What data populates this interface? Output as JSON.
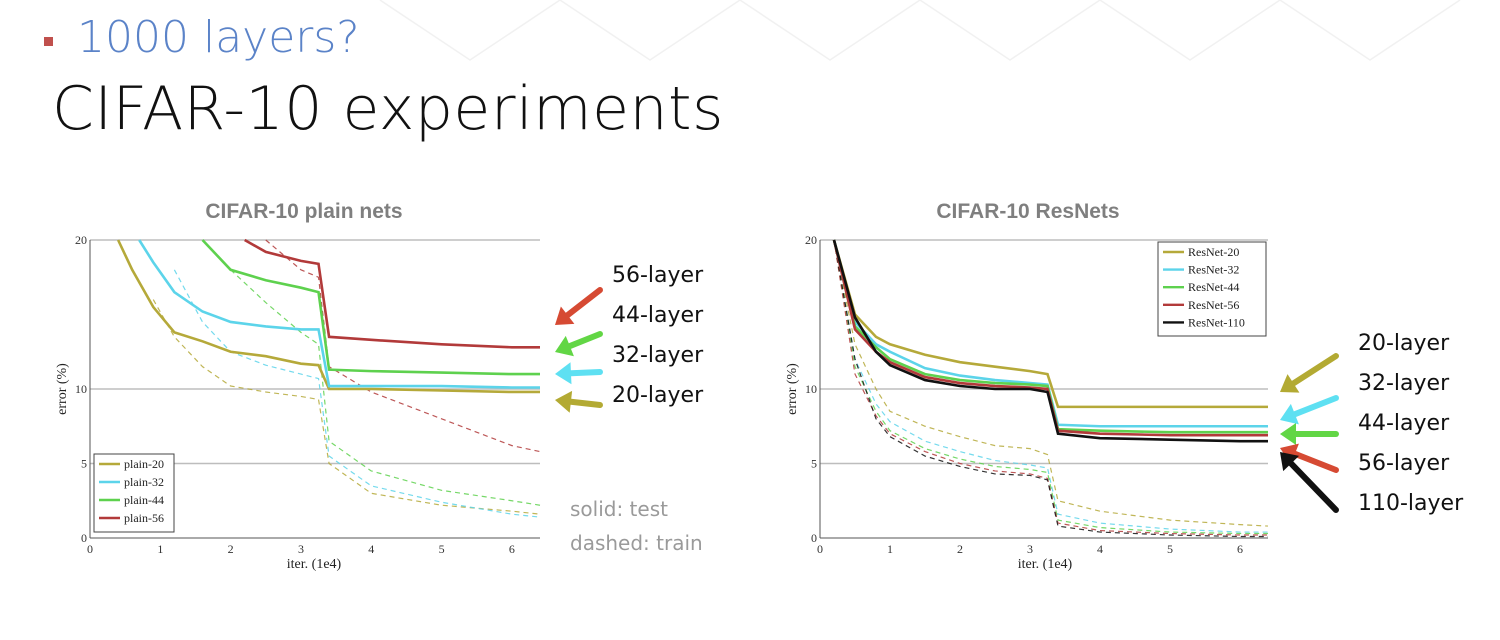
{
  "slide": {
    "bullet": "1000 layers?",
    "title": "CIFAR-10 experiments",
    "legend_note": [
      "solid: test",
      "dashed: train"
    ]
  },
  "chart_data": [
    {
      "type": "line",
      "title": "CIFAR-10 plain nets",
      "xlabel": "iter. (1e4)",
      "ylabel": "error (%)",
      "xlim": [
        0,
        6.4
      ],
      "ylim": [
        0,
        20
      ],
      "xticks": [
        "0",
        "1",
        "2",
        "3",
        "4",
        "5",
        "6"
      ],
      "yticks": [
        "0",
        "5",
        "10",
        "20"
      ],
      "hlines": [
        5,
        10,
        20
      ],
      "legend": [
        "plain-20",
        "plain-32",
        "plain-44",
        "plain-56"
      ],
      "series": [
        {
          "name": "plain-20",
          "color": "#b5a93a",
          "x": [
            0.4,
            0.6,
            0.9,
            1.2,
            1.6,
            2.0,
            2.5,
            3.0,
            3.25,
            3.4,
            4.0,
            5.0,
            6.0,
            6.4
          ],
          "test": [
            20,
            18,
            15.5,
            13.8,
            13.2,
            12.5,
            12.2,
            11.7,
            11.6,
            10.0,
            10.0,
            9.9,
            9.8,
            9.8
          ],
          "train": [
            null,
            null,
            16,
            13.5,
            11.5,
            10.2,
            9.8,
            9.5,
            9.3,
            5.0,
            3.0,
            2.2,
            1.8,
            1.6
          ]
        },
        {
          "name": "plain-32",
          "color": "#5cd4ea",
          "x": [
            0.7,
            0.9,
            1.2,
            1.6,
            2.0,
            2.5,
            3.0,
            3.25,
            3.4,
            4.0,
            5.0,
            6.0,
            6.4
          ],
          "test": [
            20,
            18.5,
            16.5,
            15.2,
            14.5,
            14.2,
            14.0,
            14.0,
            10.2,
            10.2,
            10.2,
            10.1,
            10.1
          ],
          "train": [
            null,
            null,
            18,
            14.5,
            12.5,
            11.6,
            11.0,
            10.7,
            5.5,
            3.5,
            2.4,
            1.6,
            1.4
          ]
        },
        {
          "name": "plain-44",
          "color": "#5ed14e",
          "x": [
            1.6,
            2.0,
            2.5,
            3.0,
            3.25,
            3.4,
            4.0,
            5.0,
            6.0,
            6.4
          ],
          "test": [
            20,
            18.0,
            17.3,
            16.8,
            16.5,
            11.3,
            11.2,
            11.1,
            11.0,
            11.0
          ],
          "train": [
            null,
            18,
            15.8,
            13.8,
            13.0,
            6.5,
            4.5,
            3.2,
            2.5,
            2.2
          ]
        },
        {
          "name": "plain-56",
          "color": "#b23a3a",
          "x": [
            2.2,
            2.5,
            3.0,
            3.25,
            3.4,
            4.0,
            5.0,
            6.0,
            6.4
          ],
          "test": [
            20,
            19.2,
            18.6,
            18.4,
            13.5,
            13.3,
            13.0,
            12.8,
            12.8
          ],
          "train": [
            null,
            20,
            18,
            17.5,
            11.5,
            9.8,
            8.0,
            6.2,
            5.8
          ]
        }
      ],
      "annotations": [
        {
          "label": "56-layer",
          "color": "#d64a33"
        },
        {
          "label": "44-layer",
          "color": "#62d645"
        },
        {
          "label": "32-layer",
          "color": "#5ee0f2"
        },
        {
          "label": "20-layer",
          "color": "#b3aa33"
        }
      ]
    },
    {
      "type": "line",
      "title": "CIFAR-10 ResNets",
      "xlabel": "iter. (1e4)",
      "ylabel": "error (%)",
      "xlim": [
        0,
        6.4
      ],
      "ylim": [
        0,
        20
      ],
      "xticks": [
        "0",
        "1",
        "2",
        "3",
        "4",
        "5",
        "6"
      ],
      "yticks": [
        "0",
        "5",
        "10",
        "20"
      ],
      "hlines": [
        5,
        10,
        20
      ],
      "legend": [
        "ResNet-20",
        "ResNet-32",
        "ResNet-44",
        "ResNet-56",
        "ResNet-110"
      ],
      "series": [
        {
          "name": "ResNet-20",
          "color": "#b5a93a",
          "x": [
            0.2,
            0.5,
            0.8,
            1.0,
            1.5,
            2.0,
            2.5,
            3.0,
            3.25,
            3.4,
            4.0,
            5.0,
            6.0,
            6.4
          ],
          "test": [
            20,
            15,
            13.5,
            13.0,
            12.3,
            11.8,
            11.5,
            11.2,
            11.0,
            8.8,
            8.8,
            8.8,
            8.8,
            8.8
          ],
          "train": [
            20,
            13,
            10,
            8.5,
            7.5,
            6.8,
            6.2,
            6.0,
            5.6,
            2.5,
            1.8,
            1.2,
            0.9,
            0.8
          ]
        },
        {
          "name": "ResNet-32",
          "color": "#5cd4ea",
          "x": [
            0.2,
            0.5,
            0.8,
            1.0,
            1.5,
            2.0,
            2.5,
            3.0,
            3.25,
            3.4,
            4.0,
            5.0,
            6.0,
            6.4
          ],
          "test": [
            20,
            14.5,
            13.0,
            12.5,
            11.4,
            10.9,
            10.6,
            10.4,
            10.3,
            7.6,
            7.5,
            7.5,
            7.5,
            7.5
          ],
          "train": [
            20,
            12,
            9,
            7.8,
            6.5,
            5.8,
            5.2,
            4.9,
            4.7,
            1.6,
            1.0,
            0.6,
            0.4,
            0.4
          ]
        },
        {
          "name": "ResNet-44",
          "color": "#5ed14e",
          "x": [
            0.2,
            0.5,
            0.8,
            1.0,
            1.5,
            2.0,
            2.5,
            3.0,
            3.25,
            3.4,
            4.0,
            5.0,
            6.0,
            6.4
          ],
          "test": [
            20,
            14.2,
            12.8,
            12.0,
            11.0,
            10.6,
            10.4,
            10.3,
            10.2,
            7.3,
            7.2,
            7.1,
            7.1,
            7.1
          ],
          "train": [
            20,
            11.5,
            8.5,
            7.2,
            6.0,
            5.3,
            4.8,
            4.6,
            4.4,
            1.2,
            0.7,
            0.4,
            0.3,
            0.3
          ]
        },
        {
          "name": "ResNet-56",
          "color": "#b23a3a",
          "x": [
            0.2,
            0.5,
            0.8,
            1.0,
            1.5,
            2.0,
            2.5,
            3.0,
            3.25,
            3.4,
            4.0,
            5.0,
            6.0,
            6.4
          ],
          "test": [
            20,
            14.0,
            12.5,
            11.8,
            10.8,
            10.4,
            10.2,
            10.1,
            10.0,
            7.2,
            7.0,
            6.9,
            6.9,
            6.9
          ],
          "train": [
            20,
            11,
            8.2,
            7.0,
            5.8,
            5.0,
            4.5,
            4.3,
            4.0,
            1.0,
            0.5,
            0.3,
            0.2,
            0.2
          ]
        },
        {
          "name": "ResNet-110",
          "color": "#111111",
          "x": [
            0.2,
            0.5,
            0.8,
            1.0,
            1.5,
            2.0,
            2.5,
            3.0,
            3.25,
            3.4,
            4.0,
            5.0,
            6.0,
            6.4
          ],
          "test": [
            20,
            14.8,
            12.5,
            11.6,
            10.6,
            10.2,
            10.0,
            10.0,
            9.8,
            7.0,
            6.7,
            6.6,
            6.5,
            6.5
          ],
          "train": [
            20,
            12,
            8.0,
            6.8,
            5.5,
            4.8,
            4.3,
            4.2,
            3.9,
            0.8,
            0.4,
            0.2,
            0.1,
            0.1
          ]
        }
      ],
      "annotations": [
        {
          "label": "20-layer",
          "color": "#b3aa33"
        },
        {
          "label": "32-layer",
          "color": "#5ee0f2"
        },
        {
          "label": "44-layer",
          "color": "#62d645"
        },
        {
          "label": "56-layer",
          "color": "#d64a33"
        },
        {
          "label": "110-layer",
          "color": "#111111"
        }
      ]
    }
  ]
}
